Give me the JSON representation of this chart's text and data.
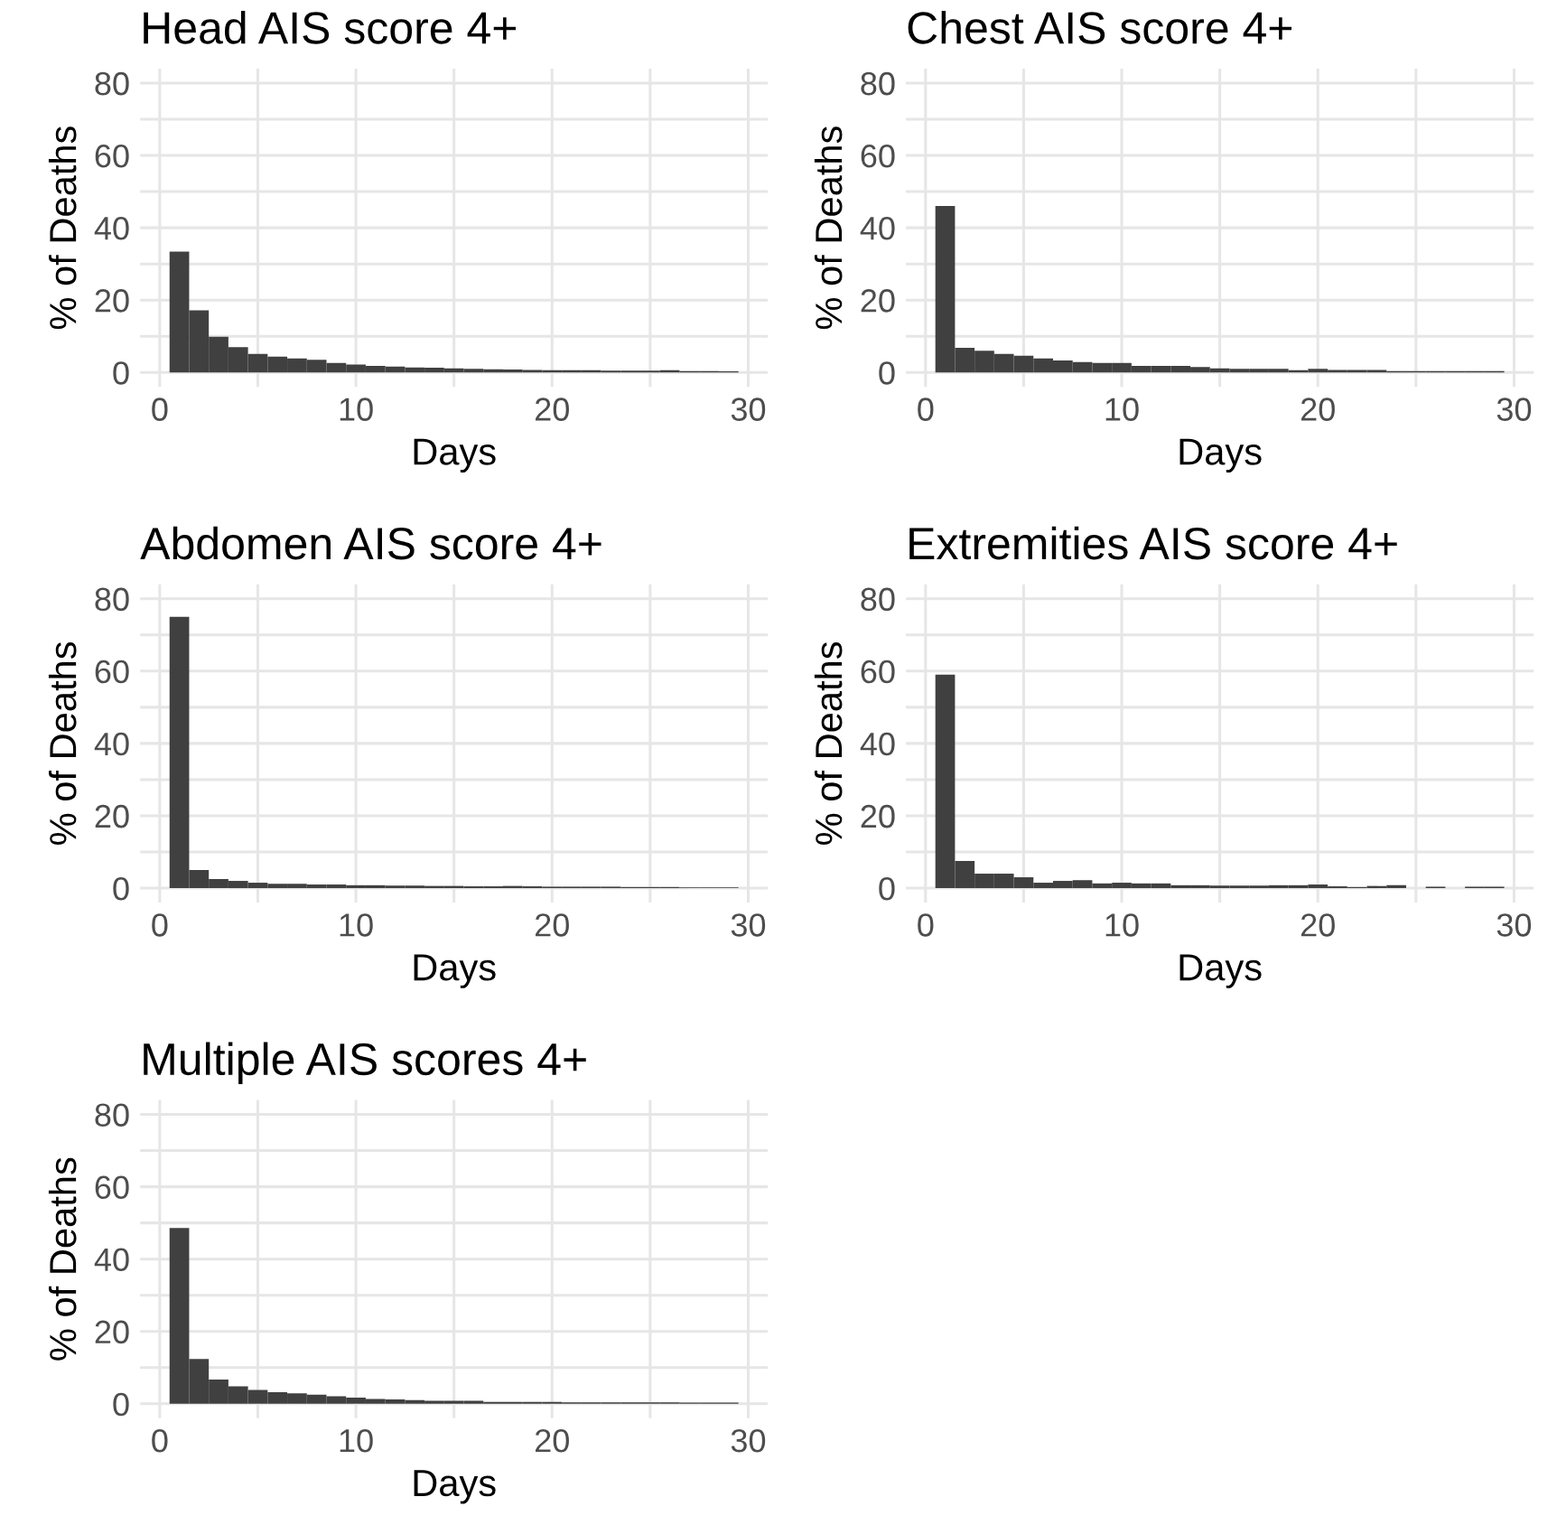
{
  "chart_data": [
    {
      "type": "histogram",
      "title": "Head AIS score 4+",
      "xlabel": "Days",
      "ylabel": "% of Deaths",
      "color": "#404040",
      "grid": true,
      "xlim": [
        -1,
        31
      ],
      "ylim": [
        -4,
        84
      ],
      "xticks": [
        0,
        {
          "value": 5,
          "label": null
        },
        10,
        {
          "value": 15,
          "label": null
        },
        20,
        {
          "value": 25,
          "label": null
        },
        30
      ],
      "yticks": [
        0,
        {
          "value": 10,
          "label": null
        },
        20,
        {
          "value": 30,
          "label": null
        },
        40,
        {
          "value": 50,
          "label": null
        },
        60,
        {
          "value": 70,
          "label": null
        },
        80
      ],
      "bins": [
        0.5,
        1.5,
        2.5,
        3.5,
        4.5,
        5.5,
        6.5,
        7.5,
        8.5,
        9.5,
        10.5,
        11.5,
        12.5,
        13.5,
        14.5,
        15.5,
        16.5,
        17.5,
        18.5,
        19.5,
        20.5,
        21.5,
        22.5,
        23.5,
        24.5,
        25.5,
        26.5,
        27.5,
        28.5,
        29.5
      ],
      "values": [
        33.4,
        17.2,
        9.9,
        7,
        5.1,
        4.4,
        3.9,
        3.5,
        2.6,
        2.2,
        1.8,
        1.6,
        1.4,
        1.3,
        1.1,
        1,
        0.9,
        0.8,
        0.7,
        0.6,
        0.6,
        0.6,
        0.5,
        0.5,
        0.5,
        0.6,
        0.4,
        0.4,
        0.3
      ]
    },
    {
      "type": "histogram",
      "title": "Chest AIS score 4+",
      "xlabel": "Days",
      "ylabel": "% of Deaths",
      "color": "#404040",
      "grid": true,
      "xlim": [
        -1,
        31
      ],
      "ylim": [
        -4,
        84
      ],
      "xticks": [
        0,
        {
          "value": 5,
          "label": null
        },
        10,
        {
          "value": 15,
          "label": null
        },
        20,
        {
          "value": 25,
          "label": null
        },
        30
      ],
      "yticks": [
        0,
        {
          "value": 10,
          "label": null
        },
        20,
        {
          "value": 30,
          "label": null
        },
        40,
        {
          "value": 50,
          "label": null
        },
        60,
        {
          "value": 70,
          "label": null
        },
        80
      ],
      "bins": [
        0.5,
        1.5,
        2.5,
        3.5,
        4.5,
        5.5,
        6.5,
        7.5,
        8.5,
        9.5,
        10.5,
        11.5,
        12.5,
        13.5,
        14.5,
        15.5,
        16.5,
        17.5,
        18.5,
        19.5,
        20.5,
        21.5,
        22.5,
        23.5,
        24.5,
        25.5,
        26.5,
        27.5,
        28.5,
        29.5
      ],
      "values": [
        46,
        6.8,
        6,
        5.1,
        4.6,
        3.9,
        3.3,
        2.9,
        2.6,
        2.6,
        1.8,
        1.8,
        1.8,
        1.5,
        1.1,
        1,
        1,
        1,
        0.6,
        1,
        0.7,
        0.7,
        0.7,
        0.4,
        0.4,
        0.4,
        0.4,
        0.4,
        0.4
      ]
    },
    {
      "type": "histogram",
      "title": "Abdomen AIS score 4+",
      "xlabel": "Days",
      "ylabel": "% of Deaths",
      "color": "#404040",
      "grid": true,
      "xlim": [
        -1,
        31
      ],
      "ylim": [
        -4,
        84
      ],
      "xticks": [
        0,
        {
          "value": 5,
          "label": null
        },
        10,
        {
          "value": 15,
          "label": null
        },
        20,
        {
          "value": 25,
          "label": null
        },
        30
      ],
      "yticks": [
        0,
        {
          "value": 10,
          "label": null
        },
        20,
        {
          "value": 30,
          "label": null
        },
        40,
        {
          "value": 50,
          "label": null
        },
        60,
        {
          "value": 70,
          "label": null
        },
        80
      ],
      "bins": [
        0.5,
        1.5,
        2.5,
        3.5,
        4.5,
        5.5,
        6.5,
        7.5,
        8.5,
        9.5,
        10.5,
        11.5,
        12.5,
        13.5,
        14.5,
        15.5,
        16.5,
        17.5,
        18.5,
        19.5,
        20.5,
        21.5,
        22.5,
        23.5,
        24.5,
        25.5,
        26.5,
        27.5,
        28.5,
        29.5
      ],
      "values": [
        75,
        5,
        2.5,
        2,
        1.5,
        1.2,
        1.2,
        1,
        1,
        0.8,
        0.8,
        0.7,
        0.7,
        0.6,
        0.6,
        0.5,
        0.5,
        0.6,
        0.5,
        0.4,
        0.4,
        0.4,
        0.4,
        0.3,
        0.3,
        0.3,
        0.2,
        0.2,
        0.2
      ]
    },
    {
      "type": "histogram",
      "title": "Extremities AIS score 4+",
      "xlabel": "Days",
      "ylabel": "% of Deaths",
      "color": "#404040",
      "grid": true,
      "xlim": [
        -1,
        31
      ],
      "ylim": [
        -4,
        84
      ],
      "xticks": [
        0,
        {
          "value": 5,
          "label": null
        },
        10,
        {
          "value": 15,
          "label": null
        },
        20,
        {
          "value": 25,
          "label": null
        },
        30
      ],
      "yticks": [
        0,
        {
          "value": 10,
          "label": null
        },
        20,
        {
          "value": 30,
          "label": null
        },
        40,
        {
          "value": 50,
          "label": null
        },
        60,
        {
          "value": 70,
          "label": null
        },
        80
      ],
      "bins": [
        0.5,
        1.5,
        2.5,
        3.5,
        4.5,
        5.5,
        6.5,
        7.5,
        8.5,
        9.5,
        10.5,
        11.5,
        12.5,
        13.5,
        14.5,
        15.5,
        16.5,
        17.5,
        18.5,
        19.5,
        20.5,
        21.5,
        22.5,
        23.5,
        24.5,
        25.5,
        26.5,
        27.5,
        28.5,
        29.5
      ],
      "values": [
        59,
        7.5,
        4,
        4,
        3,
        1.5,
        2,
        2.2,
        1.3,
        1.5,
        1.3,
        1.3,
        0.8,
        0.8,
        0.7,
        0.7,
        0.7,
        0.8,
        0.8,
        1,
        0.5,
        0.3,
        0.6,
        0.8,
        0,
        0.4,
        0,
        0.4,
        0.4
      ]
    },
    {
      "type": "histogram",
      "title": "Multiple AIS scores 4+",
      "xlabel": "Days",
      "ylabel": "% of Deaths",
      "color": "#404040",
      "grid": true,
      "xlim": [
        -1,
        31
      ],
      "ylim": [
        -4,
        84
      ],
      "xticks": [
        0,
        {
          "value": 5,
          "label": null
        },
        10,
        {
          "value": 15,
          "label": null
        },
        20,
        {
          "value": 25,
          "label": null
        },
        30
      ],
      "yticks": [
        0,
        {
          "value": 10,
          "label": null
        },
        20,
        {
          "value": 30,
          "label": null
        },
        40,
        {
          "value": 50,
          "label": null
        },
        60,
        {
          "value": 70,
          "label": null
        },
        80
      ],
      "bins": [
        0.5,
        1.5,
        2.5,
        3.5,
        4.5,
        5.5,
        6.5,
        7.5,
        8.5,
        9.5,
        10.5,
        11.5,
        12.5,
        13.5,
        14.5,
        15.5,
        16.5,
        17.5,
        18.5,
        19.5,
        20.5,
        21.5,
        22.5,
        23.5,
        24.5,
        25.5,
        26.5,
        27.5,
        28.5,
        29.5
      ],
      "values": [
        48.6,
        12.4,
        6.7,
        4.8,
        3.8,
        3.2,
        2.9,
        2.5,
        2.1,
        1.7,
        1.3,
        1.2,
        1,
        0.8,
        0.8,
        0.8,
        0.5,
        0.5,
        0.5,
        0.5,
        0.4,
        0.4,
        0.4,
        0.4,
        0.4,
        0.4,
        0.3,
        0.3,
        0.3
      ]
    }
  ]
}
